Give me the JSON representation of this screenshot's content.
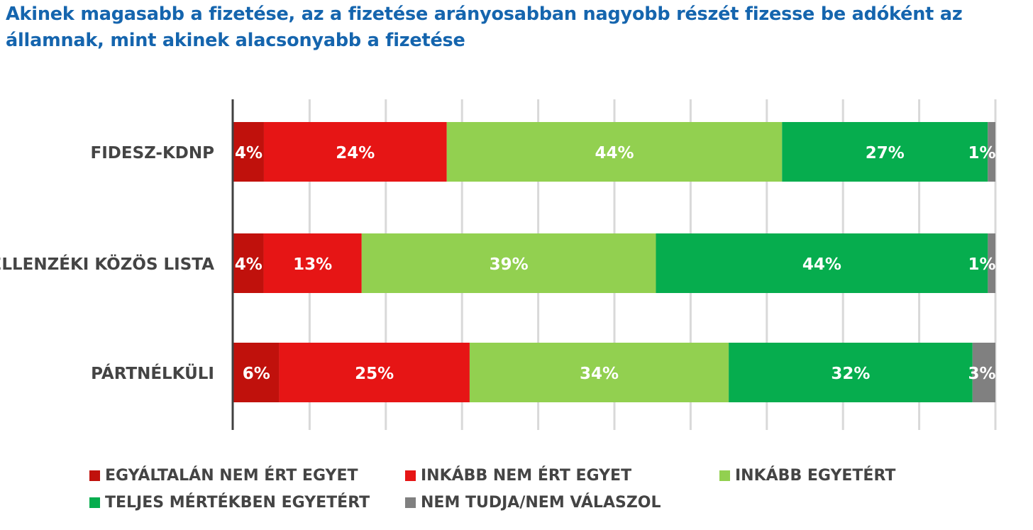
{
  "title": "Akinek magasabb a fizetése, az a fizetése arányosabban nagyobb részét fizesse be adóként az államnak, mint akinek alacsonyabb a fizetése",
  "chart_data": {
    "type": "bar",
    "orientation": "horizontal",
    "stacked": true,
    "title": "Akinek magasabb a fizetése, az a fizetése arányosabban nagyobb részét fizesse be adóként az államnak, mint akinek alacsonyabb a fizetése",
    "categories": [
      "FIDESZ-KDNP",
      "ELLENZÉKI KÖZÖS LISTA",
      "PÁRTNÉLKÜLI"
    ],
    "series": [
      {
        "name": "EGYÁLTALÁN NEM ÉRT EGYET",
        "color": "#c0110c",
        "values": [
          4,
          4,
          6
        ],
        "labels": [
          "4%",
          "4%",
          "6%"
        ]
      },
      {
        "name": "INKÁBB NEM ÉRT EGYET",
        "color": "#e61515",
        "values": [
          24,
          13,
          25
        ],
        "labels": [
          "24%",
          "13%",
          "25%"
        ]
      },
      {
        "name": "INKÁBB EGYETÉRT",
        "color": "#92d050",
        "values": [
          44,
          39,
          34
        ],
        "labels": [
          "44%",
          "39%",
          "34%"
        ]
      },
      {
        "name": "TELJES MÉRTÉKBEN EGYETÉRT",
        "color": "#06ad4e",
        "values": [
          27,
          44,
          32
        ],
        "labels": [
          "27%",
          "44%",
          "32%"
        ]
      },
      {
        "name": "NEM TUDJA/NEM VÁLASZOL",
        "color": "#808080",
        "values": [
          1,
          1,
          3
        ],
        "labels": [
          "1%",
          "1%",
          "3%"
        ]
      }
    ],
    "xlim": [
      0,
      100
    ],
    "grid": true,
    "legend_position": "bottom"
  }
}
